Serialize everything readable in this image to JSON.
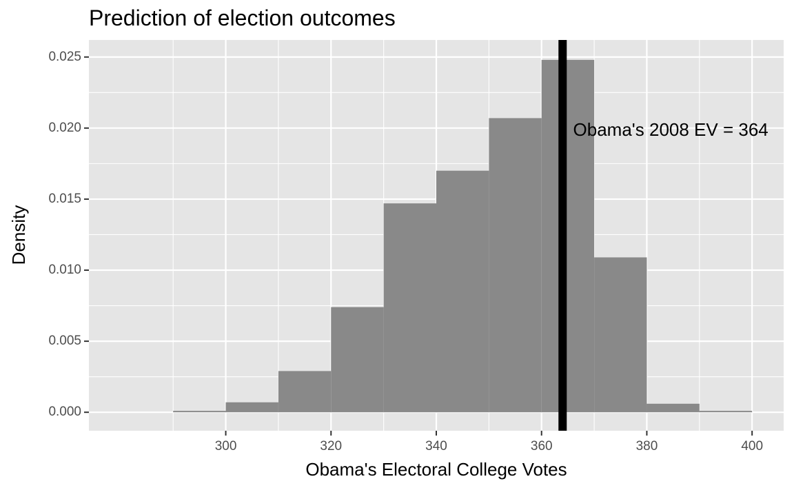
{
  "chart_data": {
    "type": "bar",
    "title": "Prediction of election outcomes",
    "xlabel": "Obama's Electoral College Votes",
    "ylabel": "Density",
    "bins": [
      {
        "x0": 290,
        "x1": 300,
        "density": 0.0001
      },
      {
        "x0": 300,
        "x1": 310,
        "density": 0.0007
      },
      {
        "x0": 310,
        "x1": 320,
        "density": 0.0029
      },
      {
        "x0": 320,
        "x1": 330,
        "density": 0.0074
      },
      {
        "x0": 330,
        "x1": 340,
        "density": 0.0147
      },
      {
        "x0": 340,
        "x1": 350,
        "density": 0.017
      },
      {
        "x0": 350,
        "x1": 360,
        "density": 0.0207
      },
      {
        "x0": 360,
        "x1": 370,
        "density": 0.0248
      },
      {
        "x0": 370,
        "x1": 380,
        "density": 0.0109
      },
      {
        "x0": 380,
        "x1": 390,
        "density": 0.0006
      },
      {
        "x0": 390,
        "x1": 400,
        "density": 0.0001
      }
    ],
    "xlim": [
      274,
      406
    ],
    "ylim": [
      -0.0013,
      0.0262
    ],
    "x_ticks": [
      300,
      320,
      340,
      360,
      380,
      400
    ],
    "x_tick_labels": [
      "300",
      "320",
      "340",
      "360",
      "380",
      "400"
    ],
    "y_ticks": [
      0.0,
      0.005,
      0.01,
      0.015,
      0.02,
      0.025
    ],
    "y_tick_labels": [
      "0.000",
      "0.005",
      "0.010",
      "0.015",
      "0.020",
      "0.025"
    ],
    "reference_line": {
      "x": 364
    },
    "annotation": {
      "text": "Obama's 2008 EV = 364",
      "x": 366,
      "y": 0.0198
    },
    "grid": true,
    "colors": {
      "panel_background": "#e5e5e5",
      "grid_major": "#ffffff",
      "bar_fill": "#898989",
      "reference_line": "#000000"
    }
  }
}
